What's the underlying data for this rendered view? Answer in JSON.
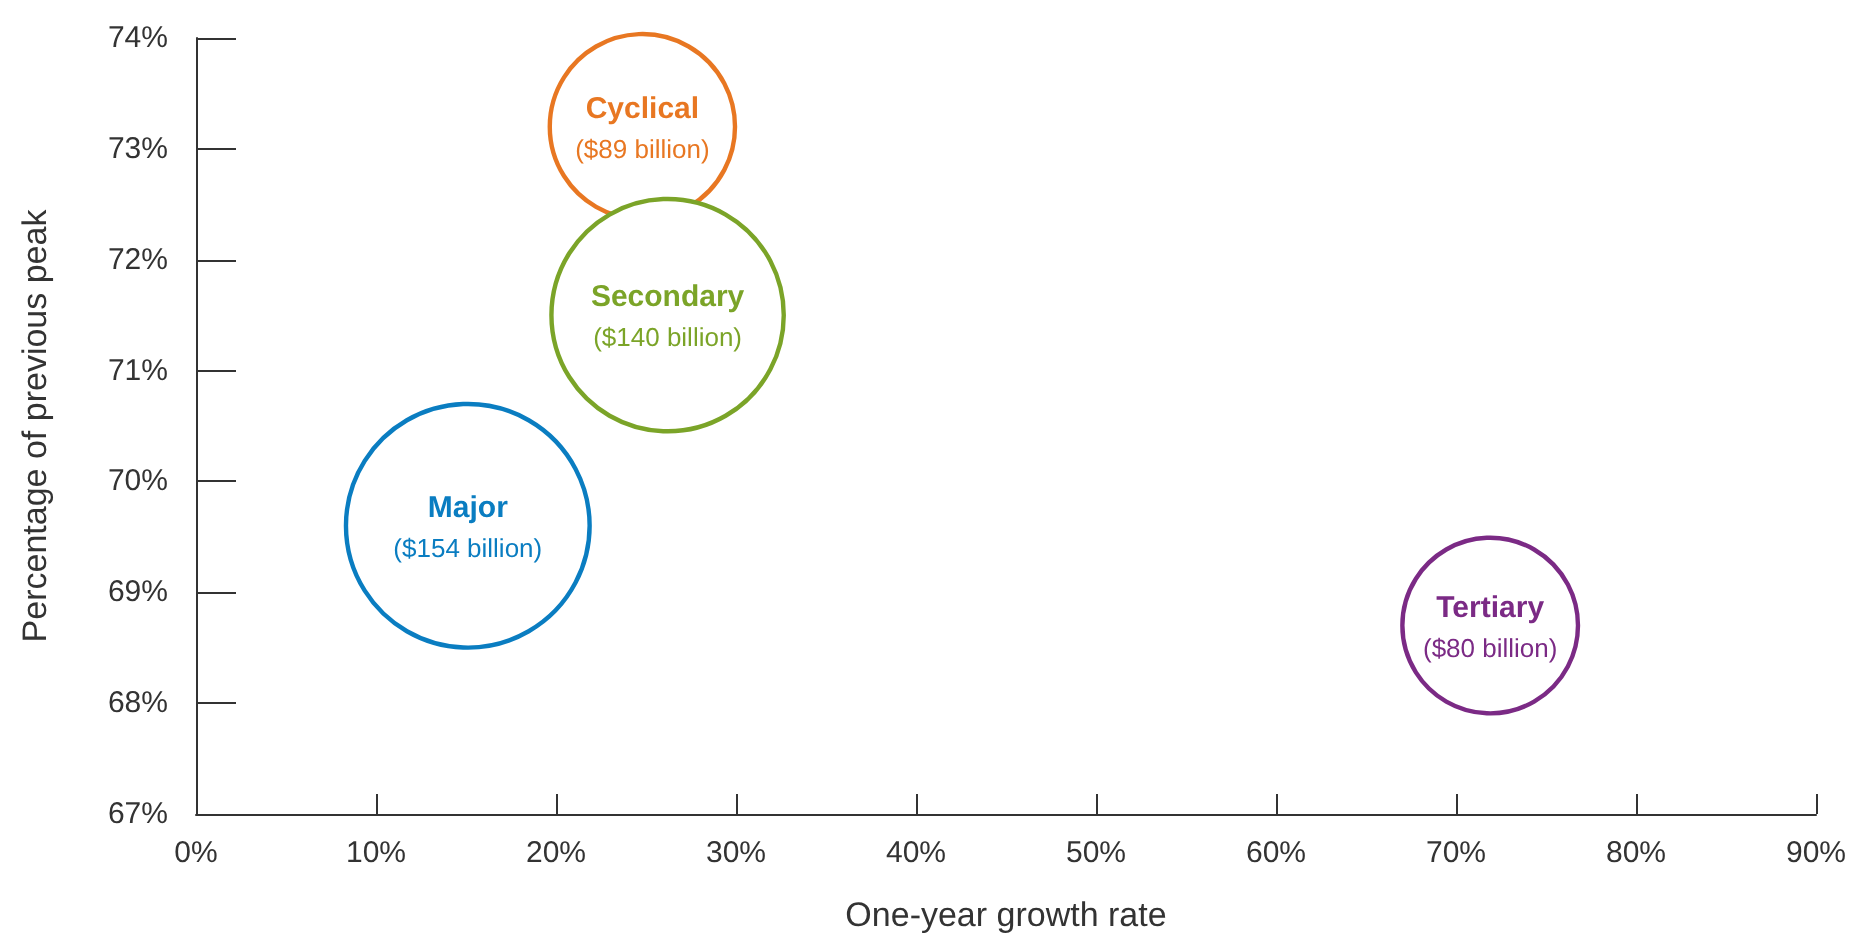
{
  "chart_data": {
    "type": "bubble",
    "xlabel": "One-year growth rate",
    "ylabel": "Percentage of previous peak",
    "xlim": [
      0,
      90
    ],
    "ylim": [
      67,
      74
    ],
    "xticks": [
      {
        "value": 0,
        "label": "0%"
      },
      {
        "value": 10,
        "label": "10%"
      },
      {
        "value": 20,
        "label": "20%"
      },
      {
        "value": 30,
        "label": "30%"
      },
      {
        "value": 40,
        "label": "40%"
      },
      {
        "value": 50,
        "label": "50%"
      },
      {
        "value": 60,
        "label": "60%"
      },
      {
        "value": 70,
        "label": "70%"
      },
      {
        "value": 80,
        "label": "80%"
      },
      {
        "value": 90,
        "label": "90%"
      }
    ],
    "yticks": [
      {
        "value": 67,
        "label": "67%"
      },
      {
        "value": 68,
        "label": "68%"
      },
      {
        "value": 69,
        "label": "69%"
      },
      {
        "value": 70,
        "label": "70%"
      },
      {
        "value": 71,
        "label": "71%"
      },
      {
        "value": 72,
        "label": "72%"
      },
      {
        "value": 73,
        "label": "73%"
      },
      {
        "value": 74,
        "label": "74%"
      }
    ],
    "grid": false,
    "legend": false,
    "series": [
      {
        "name": "Cyclical",
        "color": "#e87722",
        "x": [
          24.8
        ],
        "values": [
          73.2
        ],
        "sizes": [
          89
        ],
        "value_labels": [
          "($89 billion)"
        ]
      },
      {
        "name": "Secondary",
        "color": "#7ba428",
        "x": [
          26.2
        ],
        "values": [
          71.5
        ],
        "sizes": [
          140
        ],
        "value_labels": [
          "($140 billion)"
        ]
      },
      {
        "name": "Major",
        "color": "#0a7dc1",
        "x": [
          15.1
        ],
        "values": [
          69.6
        ],
        "sizes": [
          154
        ],
        "value_labels": [
          "($154 billion)"
        ]
      },
      {
        "name": "Tertiary",
        "color": "#7b2a85",
        "x": [
          71.9
        ],
        "values": [
          68.7
        ],
        "sizes": [
          80
        ],
        "value_labels": [
          "($80 billion)"
        ]
      }
    ]
  }
}
